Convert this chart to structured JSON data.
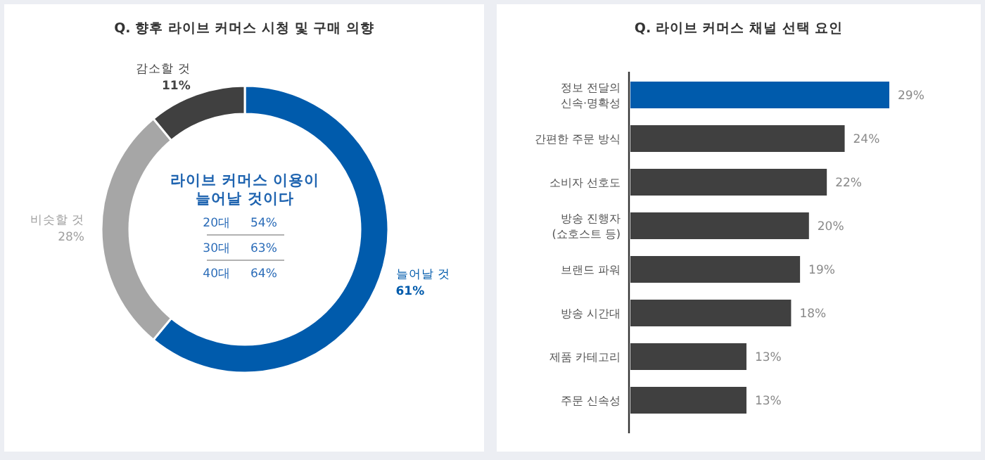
{
  "chart_data": [
    {
      "type": "donut",
      "title": "Q. 향후 라이브 커머스 시청 및 구매 의향",
      "categories": [
        "늘어날 것",
        "비슷할 것",
        "감소할 것"
      ],
      "values": [
        61,
        28,
        11
      ],
      "colors": [
        "#005bac",
        "#a6a6a6",
        "#404040"
      ],
      "value_labels": [
        "61%",
        "28%",
        "11%"
      ],
      "annotations": [
        "라이브 커머스 이용이\n늘어날 것이다",
        "20대",
        "54%",
        "30대",
        "63%",
        "40대",
        "64%"
      ]
    },
    {
      "type": "bar",
      "orientation": "horizontal",
      "title": "Q. 라이브 커머스 채널 선택 요인",
      "categories": [
        "정보 전달의\n신속·명확성",
        "간편한 주문 방식",
        "소비자 선호도",
        "방송 진행자\n(쇼호스트 등)",
        "브랜드 파워",
        "방송 시간대",
        "제품 카테고리",
        "주문 신속성"
      ],
      "values": [
        29,
        24,
        22,
        20,
        19,
        18,
        13,
        13
      ],
      "colors": [
        "#005bac",
        "#404040",
        "#404040",
        "#404040",
        "#404040",
        "#404040",
        "#404040",
        "#404040"
      ],
      "value_labels": [
        "29%",
        "24%",
        "22%",
        "20%",
        "19%",
        "18%",
        "13%",
        "13%"
      ]
    }
  ]
}
